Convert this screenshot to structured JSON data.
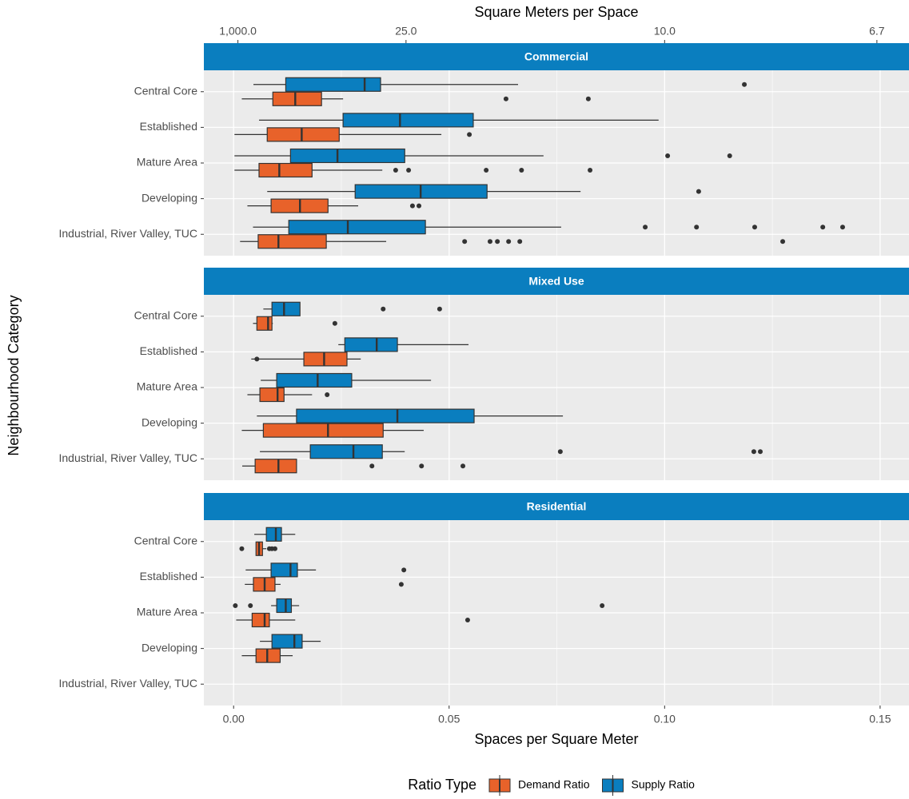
{
  "chart_data": {
    "type": "boxplot",
    "x_label": "Spaces per Square Meter",
    "x2_label": "Square Meters per Space",
    "y_label": "Neighbourhood Category",
    "legend_title": "Ratio Type",
    "legend_position": "bottom",
    "grid": true,
    "panel_background": "#ebebeb",
    "strip_color": "#0a7ebf",
    "x2_transform": "reciprocal",
    "xlim": [
      -0.0069,
      0.1567
    ],
    "xticks": [
      {
        "value": 0,
        "label": "0.00"
      },
      0.05,
      {
        "value": 0.1,
        "label": "0.10"
      },
      0.15
    ],
    "x2ticks": [
      {
        "value": 1000,
        "label": "1,000.0"
      },
      {
        "value": 25,
        "label": "25.0"
      },
      {
        "value": 10,
        "label": "10.0"
      },
      6.7
    ],
    "categories": [
      "Central Core",
      "Established",
      "Mature Area",
      "Developing",
      "Industrial, River Valley, TUC"
    ],
    "series": [
      {
        "name": "Demand Ratio",
        "color": "#e8622a"
      },
      {
        "name": "Supply Ratio",
        "color": "#0a7ebf"
      }
    ],
    "facets": [
      {
        "title": "Commercial",
        "boxes": [
          [
            {
              "low": 0.0019,
              "q1": 0.0091,
              "median": 0.0143,
              "q3": 0.0204,
              "high": 0.0254,
              "outliers": [
                0.0632,
                0.0823
              ]
            },
            {
              "low": 0.0002,
              "q1": 0.0078,
              "median": 0.0158,
              "q3": 0.0245,
              "high": 0.0482,
              "outliers": [
                0.0547
              ]
            },
            {
              "low": 0.0002,
              "q1": 0.0059,
              "median": 0.0106,
              "q3": 0.0182,
              "high": 0.0345,
              "outliers": [
                0.0376,
                0.0406,
                0.0586,
                0.0668,
                0.0827
              ]
            },
            {
              "low": 0.0032,
              "q1": 0.0087,
              "median": 0.0154,
              "q3": 0.0219,
              "high": 0.0289,
              "outliers": [
                0.0415,
                0.043
              ]
            },
            {
              "low": 0.0015,
              "q1": 0.0057,
              "median": 0.0104,
              "q3": 0.0215,
              "high": 0.0354,
              "outliers": [
                0.0536,
                0.0595,
                0.0612,
                0.0638,
                0.0664,
                0.1274
              ]
            }
          ],
          [
            {
              "low": 0.0046,
              "q1": 0.0121,
              "median": 0.0304,
              "q3": 0.0341,
              "high": 0.066,
              "outliers": [
                0.1185
              ]
            },
            {
              "low": 0.0059,
              "q1": 0.0254,
              "median": 0.0386,
              "q3": 0.0556,
              "high": 0.0986,
              "outliers": []
            },
            {
              "low": 0.0002,
              "q1": 0.0132,
              "median": 0.0241,
              "q3": 0.0397,
              "high": 0.0719,
              "outliers": [
                0.1007,
                0.1151
              ]
            },
            {
              "low": 0.0078,
              "q1": 0.0282,
              "median": 0.0434,
              "q3": 0.0588,
              "high": 0.0805,
              "outliers": [
                0.1079
              ]
            },
            {
              "low": 0.0045,
              "q1": 0.0128,
              "median": 0.0265,
              "q3": 0.0445,
              "high": 0.076,
              "outliers": [
                0.0955,
                0.1074,
                0.1209,
                0.1367,
                0.1413
              ]
            }
          ]
        ]
      },
      {
        "title": "Mixed Use",
        "boxes": [
          [
            {
              "low": 0.0045,
              "q1": 0.0054,
              "median": 0.008,
              "q3": 0.0089,
              "high": 0.0091,
              "outliers": [
                0.0235
              ]
            },
            {
              "low": 0.0041,
              "q1": 0.0163,
              "median": 0.021,
              "q3": 0.0263,
              "high": 0.0295,
              "outliers": [
                0.0054
              ]
            },
            {
              "low": 0.0032,
              "q1": 0.0061,
              "median": 0.0102,
              "q3": 0.0117,
              "high": 0.0182,
              "outliers": [
                0.0217
              ]
            },
            {
              "low": 0.0019,
              "q1": 0.0069,
              "median": 0.0219,
              "q3": 0.0347,
              "high": 0.0441,
              "outliers": []
            },
            {
              "low": 0.002,
              "q1": 0.005,
              "median": 0.0104,
              "q3": 0.0146,
              "high": 0.0146,
              "outliers": [
                0.0321,
                0.0436,
                0.0532
              ]
            }
          ],
          [
            {
              "low": 0.0069,
              "q1": 0.0089,
              "median": 0.0117,
              "q3": 0.0154,
              "high": 0.0154,
              "outliers": [
                0.0347,
                0.0478
              ]
            },
            {
              "low": 0.0243,
              "q1": 0.0258,
              "median": 0.0332,
              "q3": 0.038,
              "high": 0.0545,
              "outliers": []
            },
            {
              "low": 0.0063,
              "q1": 0.01,
              "median": 0.0195,
              "q3": 0.0274,
              "high": 0.0458,
              "outliers": []
            },
            {
              "low": 0.0054,
              "q1": 0.0146,
              "median": 0.038,
              "q3": 0.0558,
              "high": 0.0764,
              "outliers": []
            },
            {
              "low": 0.0061,
              "q1": 0.0178,
              "median": 0.0278,
              "q3": 0.0345,
              "high": 0.0397,
              "outliers": [
                0.0758,
                0.1207,
                0.1222
              ]
            }
          ]
        ]
      },
      {
        "title": "Residential",
        "boxes": [
          [
            {
              "low": 0.0052,
              "q1": 0.0052,
              "median": 0.0059,
              "q3": 0.0067,
              "high": 0.0076,
              "outliers": [
                0.0019,
                0.0083,
                0.0089,
                0.0096
              ]
            },
            {
              "low": 0.0026,
              "q1": 0.0046,
              "median": 0.0072,
              "q3": 0.0096,
              "high": 0.0109,
              "outliers": [
                0.0389
              ]
            },
            {
              "low": 0.0006,
              "q1": 0.0043,
              "median": 0.0072,
              "q3": 0.0083,
              "high": 0.0143,
              "outliers": [
                0.0543
              ]
            },
            {
              "low": 0.0019,
              "q1": 0.0052,
              "median": 0.0078,
              "q3": 0.0108,
              "high": 0.0137,
              "outliers": []
            },
            null
          ],
          [
            {
              "low": 0.0048,
              "q1": 0.0076,
              "median": 0.0098,
              "q3": 0.0111,
              "high": 0.0143,
              "outliers": []
            },
            {
              "low": 0.0028,
              "q1": 0.0087,
              "median": 0.0132,
              "q3": 0.0148,
              "high": 0.0191,
              "outliers": [
                0.0395
              ]
            },
            {
              "low": 0.0087,
              "q1": 0.01,
              "median": 0.0121,
              "q3": 0.0134,
              "high": 0.0152,
              "outliers": [
                0.0004,
                0.0039,
                0.0855
              ]
            },
            {
              "low": 0.0061,
              "q1": 0.0089,
              "median": 0.0141,
              "q3": 0.0159,
              "high": 0.0202,
              "outliers": []
            },
            null
          ]
        ]
      }
    ]
  }
}
